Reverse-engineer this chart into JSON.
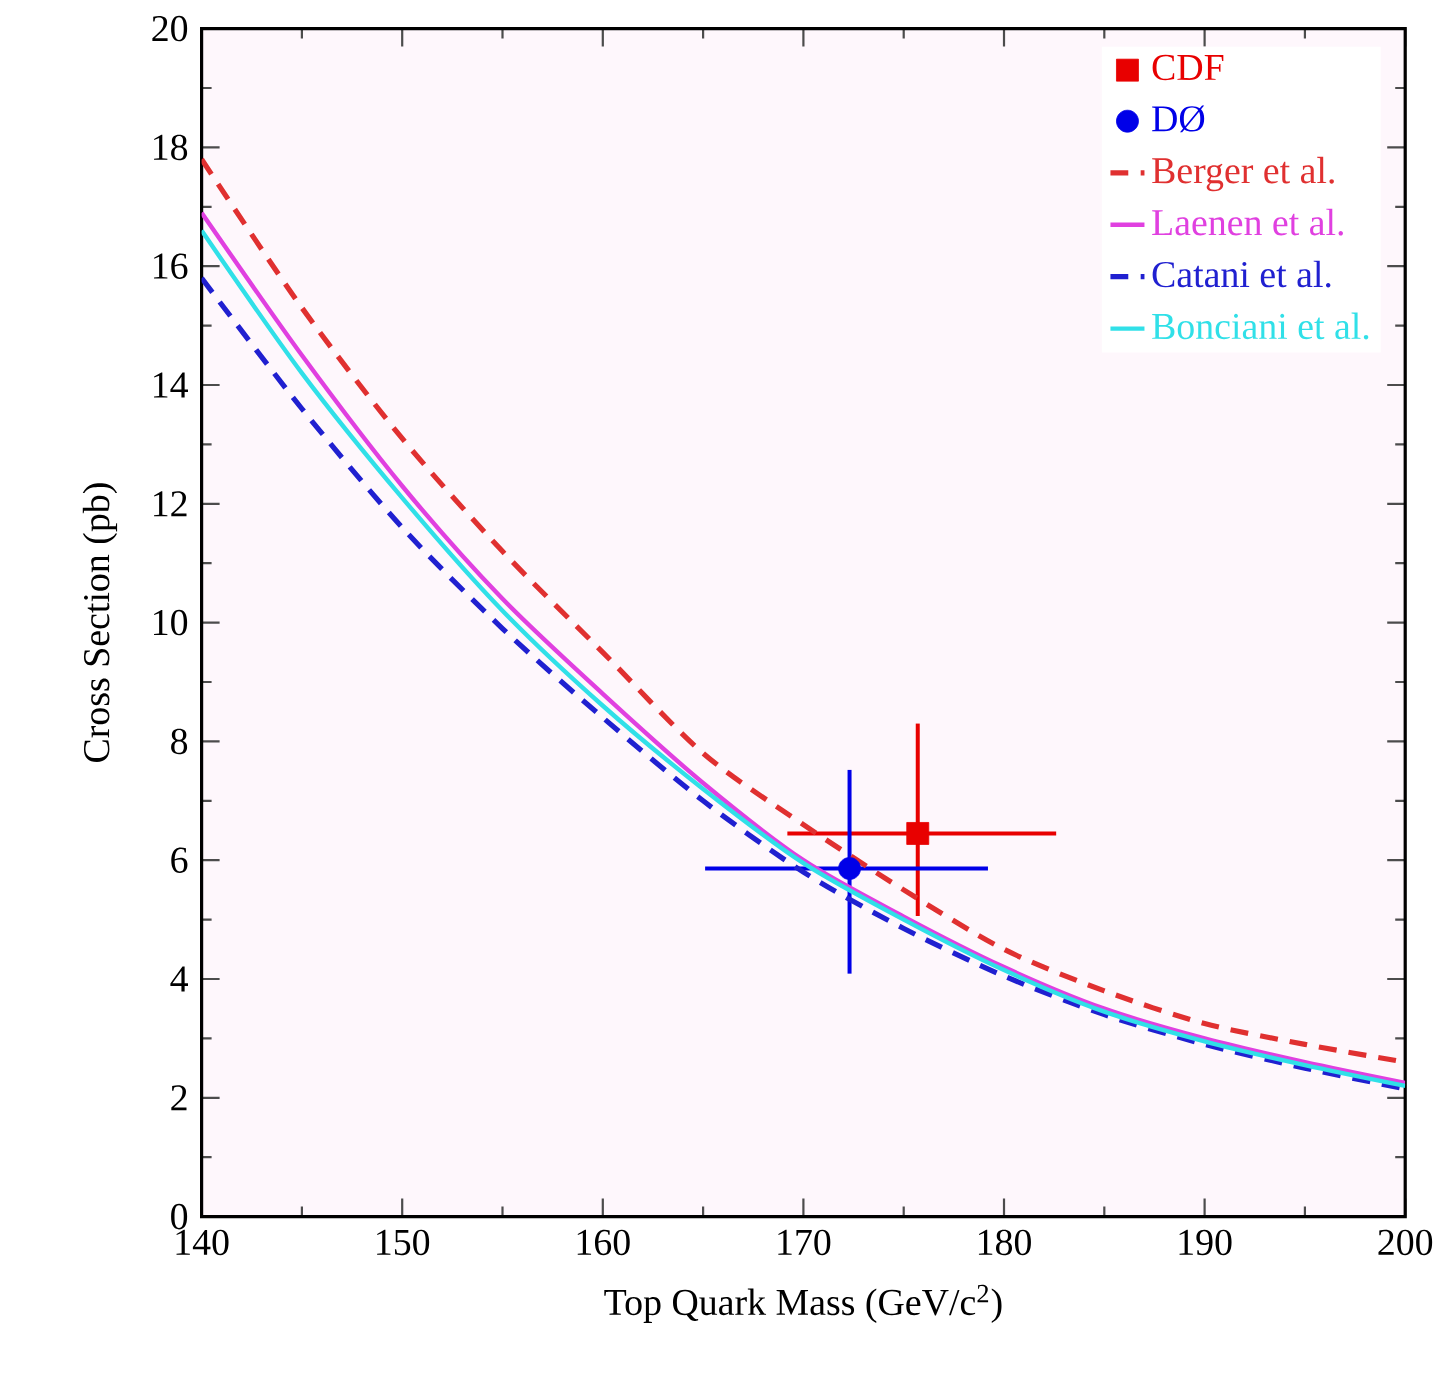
{
  "chart_data": {
    "type": "line",
    "xlabel": "Top Quark Mass (GeV/c$^{2}$)",
    "ylabel": "Cross Section (pb)",
    "xlim": [
      140,
      200
    ],
    "ylim": [
      0,
      20
    ],
    "xticks": [
      140,
      150,
      160,
      170,
      180,
      190,
      200
    ],
    "yticks": [
      0,
      2,
      4,
      6,
      8,
      10,
      12,
      14,
      16,
      18,
      20
    ],
    "grid": false,
    "legend": "top right",
    "series": [
      {
        "name": "CDF",
        "type": "scatter",
        "marker": "square",
        "color": "#e80000",
        "x": [
          175.7
        ],
        "values": [
          6.45
        ],
        "errors": [
          [
            5.06,
            8.3
          ]
        ],
        "xerrors": [
          [
            169.2,
            182.6
          ]
        ]
      },
      {
        "name": "DØ",
        "type": "scatter",
        "marker": "circle",
        "color": "#0000e8",
        "x": [
          172.3
        ],
        "values": [
          5.86
        ],
        "errors": [
          [
            4.09,
            7.52
          ]
        ],
        "xerrors": [
          [
            165.1,
            179.2
          ]
        ]
      },
      {
        "name": "Berger et al.",
        "line_style": "dashed",
        "color": "#e03030",
        "x": [
          140,
          145,
          150,
          155,
          160,
          165,
          170,
          175,
          180,
          185,
          190,
          195,
          200
        ],
        "values": [
          17.8,
          15.3,
          13.1,
          11.2,
          9.5,
          7.8,
          6.6,
          5.5,
          4.5,
          3.8,
          3.25,
          2.9,
          2.6
        ]
      },
      {
        "name": "Laenen et al.",
        "line_style": "solid",
        "color": "#e040e0",
        "x": [
          140,
          145,
          150,
          155,
          160,
          165,
          170,
          175,
          180,
          185,
          190,
          195,
          200
        ],
        "values": [
          16.9,
          14.5,
          12.3,
          10.4,
          8.8,
          7.3,
          6.0,
          5.05,
          4.2,
          3.5,
          3.0,
          2.6,
          2.25
        ]
      },
      {
        "name": "Catani et al.",
        "line_style": "dashed",
        "color": "#2020d0",
        "x": [
          140,
          145,
          150,
          155,
          160,
          165,
          170,
          175,
          180,
          185,
          190,
          195,
          200
        ],
        "values": [
          15.8,
          13.6,
          11.6,
          9.9,
          8.4,
          7.0,
          5.8,
          4.85,
          4.05,
          3.4,
          2.9,
          2.5,
          2.15
        ]
      },
      {
        "name": "Bonciani et al.",
        "line_style": "solid",
        "color": "#30e0e8",
        "x": [
          140,
          145,
          150,
          155,
          160,
          165,
          170,
          175,
          180,
          185,
          190,
          195,
          200
        ],
        "values": [
          16.6,
          14.2,
          12.1,
          10.2,
          8.6,
          7.2,
          5.95,
          5.0,
          4.15,
          3.45,
          2.95,
          2.55,
          2.2
        ]
      }
    ]
  }
}
